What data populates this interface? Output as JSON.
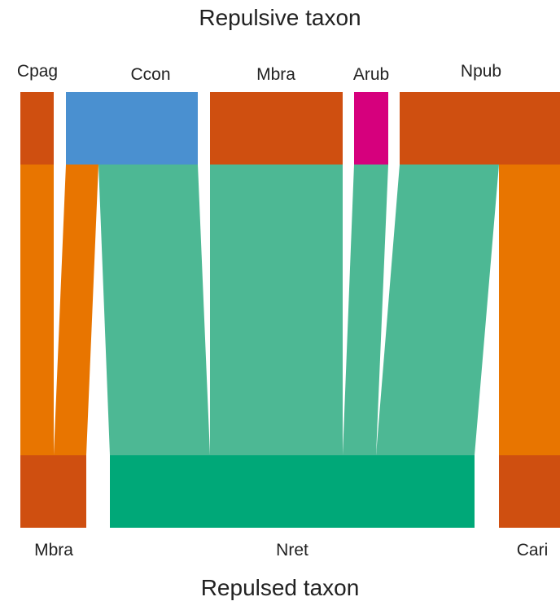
{
  "title_top": "Repulsive taxon",
  "title_bottom": "Repulsed taxon",
  "colors": {
    "brown": "#cf4f10",
    "blue": "#4a90d0",
    "magenta": "#d6007d",
    "orange": "#e87500",
    "teal_flow": "#4db894",
    "green": "#00a878"
  },
  "top_nodes": [
    {
      "id": "Cpag",
      "label": "Cpag",
      "color": "brown"
    },
    {
      "id": "Ccon",
      "label": "Ccon",
      "color": "blue"
    },
    {
      "id": "Mbra",
      "label": "Mbra",
      "color": "brown"
    },
    {
      "id": "Arub",
      "label": "Arub",
      "color": "magenta"
    },
    {
      "id": "Npub",
      "label": "Npub",
      "color": "brown"
    }
  ],
  "bottom_nodes": [
    {
      "id": "Mbra",
      "label": "Mbra",
      "color": "brown"
    },
    {
      "id": "Nret",
      "label": "Nret",
      "color": "green"
    },
    {
      "id": "Cari",
      "label": "Cari",
      "color": "brown"
    }
  ],
  "flows": [
    {
      "from": "Cpag",
      "to": "Mbra",
      "color": "orange"
    },
    {
      "from": "Ccon",
      "to": "Mbra",
      "color": "orange"
    },
    {
      "from": "Ccon",
      "to": "Nret",
      "color": "teal_flow"
    },
    {
      "from": "Mbra",
      "to": "Nret",
      "color": "teal_flow"
    },
    {
      "from": "Arub",
      "to": "Nret",
      "color": "teal_flow"
    },
    {
      "from": "Npub",
      "to": "Nret",
      "color": "teal_flow"
    },
    {
      "from": "Npub",
      "to": "Cari",
      "color": "orange"
    }
  ]
}
